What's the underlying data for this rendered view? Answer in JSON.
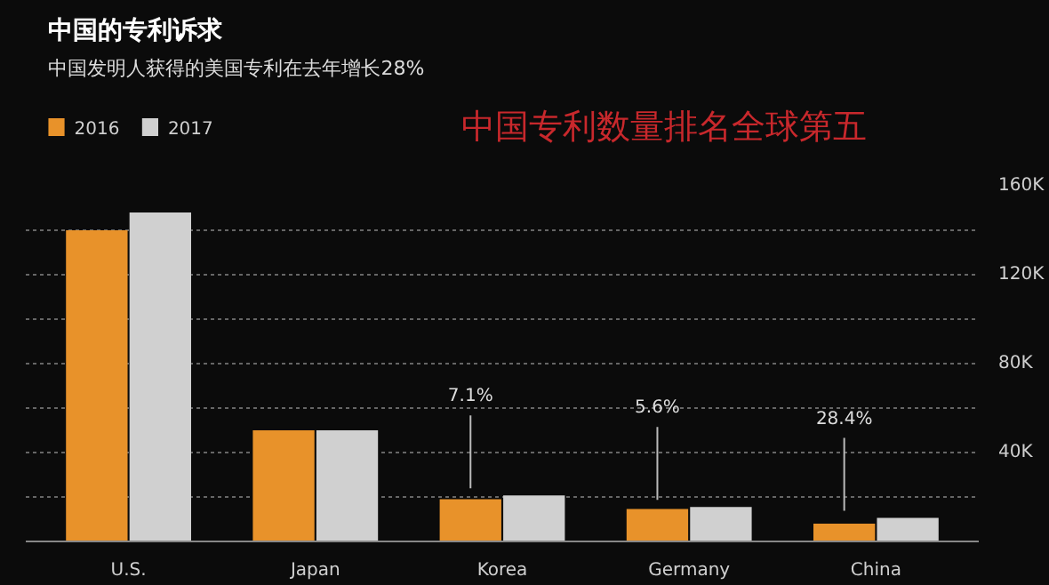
{
  "chart_data": {
    "type": "bar",
    "title": "中国的专利诉求",
    "subtitle": "中国发明人获得的美国专利在去年增长28%",
    "categories": [
      "U.S.",
      "Japan",
      "Korea",
      "Germany",
      "China"
    ],
    "series": [
      {
        "name": "2016",
        "color": "#e8922a",
        "values": [
          140000,
          50000,
          19000,
          14600,
          8000
        ]
      },
      {
        "name": "2017",
        "color": "#d0d0d0",
        "values": [
          148000,
          50000,
          20700,
          15500,
          10600
        ]
      }
    ],
    "ylim": [
      0,
      160000
    ],
    "yticks": [
      {
        "value": 0,
        "label": null
      },
      {
        "value": 20000,
        "label": null
      },
      {
        "value": 40000,
        "label": "40K"
      },
      {
        "value": 60000,
        "label": null
      },
      {
        "value": 80000,
        "label": "80K"
      },
      {
        "value": 100000,
        "label": null
      },
      {
        "value": 120000,
        "label": "120K"
      },
      {
        "value": 140000,
        "label": null
      },
      {
        "value": 160000,
        "label": "160K"
      }
    ],
    "grid": "y",
    "legend": "top left",
    "annotations": [
      "中国专利数量排名全球第五",
      "7.1%",
      "5.6%",
      "28.4%"
    ]
  }
}
